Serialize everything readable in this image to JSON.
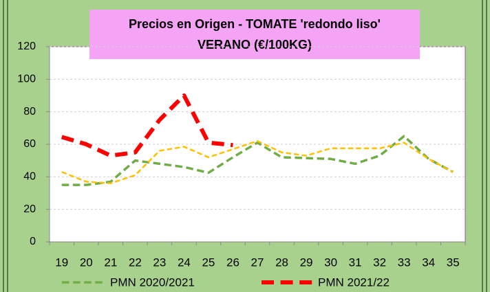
{
  "chart_data": {
    "type": "line",
    "title": [
      "Precios en Origen - TOMATE 'redondo liso'",
      "VERANO (€/100KG)"
    ],
    "categories": [
      "19",
      "20",
      "21",
      "22",
      "23",
      "24",
      "25",
      "26",
      "27",
      "28",
      "29",
      "30",
      "31",
      "32",
      "33",
      "34",
      "35"
    ],
    "series": [
      {
        "name": "PMN 2020/2021",
        "color": "#70ad47",
        "width": 3.5,
        "values": [
          35,
          35,
          37,
          50,
          48,
          46,
          42.5,
          52,
          61,
          52,
          51.5,
          51,
          48,
          53,
          65,
          51,
          43
        ]
      },
      {
        "color": "#ffc000",
        "width": 2.5,
        "values": [
          43,
          37,
          36,
          41,
          56,
          58.5,
          52,
          57,
          62,
          55,
          53,
          57.5,
          57.5,
          57.5,
          61,
          51,
          43
        ]
      },
      {
        "name": "PMN 2021/22",
        "color": "#ff0000",
        "width": 6,
        "values": [
          64.5,
          60,
          53,
          55,
          75,
          90,
          61,
          59.5,
          null,
          null,
          null,
          null,
          null,
          null,
          null,
          null,
          null
        ]
      }
    ],
    "ylim": [
      0,
      120
    ],
    "yticks": [
      0,
      20,
      40,
      60,
      80,
      100,
      120
    ],
    "grid": true,
    "legend": "bottom"
  }
}
